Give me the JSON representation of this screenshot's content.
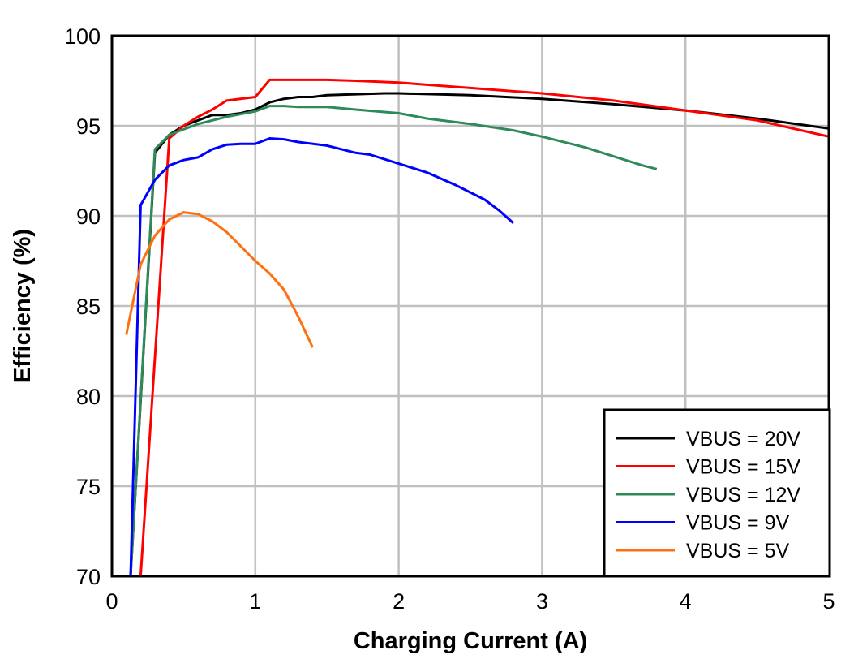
{
  "chart_data": {
    "type": "line",
    "title": "",
    "xlabel": "Charging Current (A)",
    "ylabel": "Efficiency (%)",
    "xlim": [
      0,
      5
    ],
    "ylim": [
      70,
      100
    ],
    "xticks": [
      0,
      1,
      2,
      3,
      4,
      5
    ],
    "yticks": [
      70,
      75,
      80,
      85,
      90,
      95,
      100
    ],
    "grid": true,
    "legend_position": "lower right",
    "series": [
      {
        "name": "VBUS = 20V",
        "color": "#000000",
        "x": [
          0.13,
          0.3,
          0.4,
          0.5,
          0.6,
          0.7,
          0.8,
          0.9,
          1.0,
          1.1,
          1.2,
          1.3,
          1.4,
          1.5,
          1.7,
          1.9,
          2.0,
          2.5,
          3.0,
          3.5,
          4.0,
          4.5,
          5.0
        ],
        "y": [
          70,
          93.5,
          94.5,
          95.0,
          95.3,
          95.6,
          95.6,
          95.7,
          95.9,
          96.3,
          96.5,
          96.6,
          96.6,
          96.7,
          96.75,
          96.8,
          96.8,
          96.7,
          96.5,
          96.2,
          95.85,
          95.4,
          94.85
        ]
      },
      {
        "name": "VBUS = 15V",
        "color": "#ff0000",
        "x": [
          0.2,
          0.4,
          0.5,
          0.6,
          0.7,
          0.8,
          1.0,
          1.1,
          1.3,
          1.5,
          1.7,
          2.0,
          2.5,
          3.0,
          3.5,
          4.0,
          4.5,
          5.0
        ],
        "y": [
          70,
          94.3,
          95.0,
          95.5,
          95.9,
          96.4,
          96.6,
          97.55,
          97.55,
          97.55,
          97.5,
          97.4,
          97.1,
          96.8,
          96.4,
          95.85,
          95.3,
          94.4
        ]
      },
      {
        "name": "VBUS = 12V",
        "color": "#2e8b57",
        "x": [
          0.13,
          0.3,
          0.4,
          0.5,
          0.6,
          0.7,
          0.8,
          1.0,
          1.1,
          1.2,
          1.3,
          1.5,
          1.7,
          2.0,
          2.2,
          2.5,
          2.8,
          3.0,
          3.3,
          3.5,
          3.7,
          3.8
        ],
        "y": [
          70,
          93.7,
          94.5,
          94.8,
          95.1,
          95.3,
          95.5,
          95.8,
          96.1,
          96.1,
          96.05,
          96.05,
          95.9,
          95.7,
          95.4,
          95.1,
          94.75,
          94.4,
          93.8,
          93.3,
          92.8,
          92.6
        ]
      },
      {
        "name": "VBUS = 9V",
        "color": "#0000ff",
        "x": [
          0.13,
          0.2,
          0.3,
          0.4,
          0.5,
          0.6,
          0.7,
          0.8,
          0.9,
          1.0,
          1.1,
          1.2,
          1.3,
          1.5,
          1.7,
          1.8,
          2.0,
          2.2,
          2.4,
          2.6,
          2.7,
          2.8
        ],
        "y": [
          70,
          90.6,
          92.0,
          92.8,
          93.1,
          93.25,
          93.7,
          93.95,
          94.0,
          94.0,
          94.3,
          94.25,
          94.1,
          93.9,
          93.5,
          93.4,
          92.9,
          92.4,
          91.7,
          90.9,
          90.3,
          89.6
        ]
      },
      {
        "name": "VBUS = 5V",
        "color": "#ff7010",
        "x": [
          0.1,
          0.2,
          0.3,
          0.4,
          0.5,
          0.6,
          0.7,
          0.8,
          0.9,
          1.0,
          1.1,
          1.2,
          1.3,
          1.4
        ],
        "y": [
          83.4,
          87.3,
          88.9,
          89.8,
          90.2,
          90.1,
          89.7,
          89.1,
          88.3,
          87.5,
          86.8,
          85.9,
          84.4,
          82.7
        ]
      }
    ]
  }
}
